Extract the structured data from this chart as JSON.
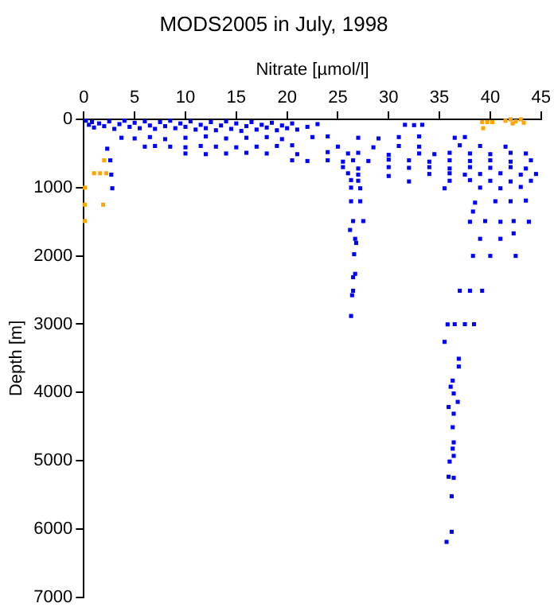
{
  "chart_data": {
    "type": "scatter",
    "title": "MODS2005 in July, 1998",
    "xlabel": "Nitrate [µmol/l]",
    "ylabel": "Depth [m]",
    "xlim": [
      0,
      45
    ],
    "xticks": [
      0,
      5,
      10,
      15,
      20,
      25,
      30,
      35,
      40,
      45
    ],
    "ylim": [
      7000,
      0
    ],
    "yticks": [
      0,
      1000,
      2000,
      3000,
      4000,
      5000,
      6000,
      7000
    ],
    "grid": false,
    "legend": false,
    "marker": "square",
    "series": [
      {
        "color": "#0000ff",
        "x": [
          0.2,
          0.5,
          0.8,
          1,
          1.5,
          2,
          2.5,
          3,
          3.5,
          4,
          4.5,
          5,
          5.5,
          6,
          6.5,
          7,
          7.5,
          8,
          8.5,
          9,
          9.5,
          10,
          10.5,
          11,
          11.5,
          12,
          12.5,
          13,
          13.5,
          14,
          14.5,
          15,
          15.5,
          16,
          16.5,
          17,
          17.5,
          18,
          18.5,
          19,
          19.5,
          20,
          20.5,
          21,
          22,
          23,
          31.6,
          32.5,
          33.3,
          3.7,
          5,
          6.5,
          8,
          10,
          12,
          14,
          16,
          18,
          19.5,
          22.5,
          24,
          27,
          29,
          31,
          33,
          36.5,
          37.5,
          6,
          7,
          8.5,
          10,
          11.5,
          13,
          15,
          17,
          19,
          20.5,
          25,
          28.5,
          31,
          33,
          37,
          39,
          41.5,
          10,
          12,
          14,
          16,
          18,
          21,
          24,
          26,
          27,
          30,
          33,
          34.5,
          36,
          38,
          40,
          42,
          43.5,
          20.5,
          22,
          24,
          25.5,
          26.5,
          28,
          30,
          32,
          34,
          36,
          38,
          40,
          42,
          44,
          2.3,
          2.6,
          2.7,
          2.8,
          25.5,
          27,
          30,
          32,
          34,
          36,
          38,
          40,
          42,
          43.5,
          26,
          27,
          30,
          34,
          36,
          37.5,
          39,
          41,
          43,
          44.5,
          26.3,
          27,
          32,
          36,
          38,
          40,
          42,
          44,
          26.3,
          27.2,
          35.5,
          39,
          41,
          43,
          26.3,
          27.2,
          38.5,
          40.5,
          42,
          43.5,
          26.5,
          27.5,
          38,
          39.5,
          41,
          42.3,
          43.8,
          38.3,
          26.2,
          26.7,
          26.8,
          26.6,
          26.7,
          26.5,
          26.5,
          26.4,
          26.3,
          39,
          41,
          42.3,
          38.3,
          40,
          42.5,
          37,
          38,
          39.2,
          35.8,
          36.5,
          37.5,
          38.4,
          35.5,
          36.9,
          36.9,
          36.3,
          36.1,
          36.4,
          36.8,
          35.9,
          36.4,
          36.3,
          36.4,
          36.3,
          36.4,
          36,
          35.9,
          36.4,
          36.2,
          36.2,
          35.7
        ],
        "values": [
          20,
          80,
          40,
          120,
          60,
          100,
          30,
          140,
          70,
          20,
          110,
          50,
          130,
          30,
          90,
          140,
          40,
          100,
          20,
          130,
          60,
          110,
          30,
          150,
          80,
          130,
          40,
          160,
          90,
          30,
          140,
          60,
          170,
          100,
          40,
          150,
          80,
          120,
          50,
          160,
          90,
          130,
          60,
          150,
          110,
          70,
          80,
          85,
          80,
          270,
          280,
          260,
          290,
          270,
          250,
          280,
          270,
          260,
          290,
          260,
          250,
          270,
          280,
          260,
          250,
          270,
          260,
          400,
          390,
          400,
          410,
          390,
          400,
          410,
          400,
          390,
          380,
          400,
          410,
          390,
          400,
          380,
          390,
          400,
          500,
          510,
          500,
          490,
          500,
          510,
          480,
          500,
          490,
          520,
          500,
          510,
          490,
          500,
          510,
          490,
          500,
          600,
          610,
          600,
          620,
          600,
          610,
          590,
          600,
          620,
          600,
          610,
          600,
          620,
          600,
          430,
          600,
          810,
          1010,
          700,
          720,
          700,
          710,
          700,
          720,
          700,
          710,
          700,
          720,
          790,
          810,
          830,
          800,
          790,
          810,
          800,
          790,
          810,
          800,
          890,
          900,
          910,
          900,
          890,
          900,
          910,
          900,
          1000,
          1010,
          1010,
          1000,
          1010,
          990,
          1200,
          1200,
          1220,
          1200,
          1200,
          1190,
          1490,
          1490,
          1500,
          1490,
          1500,
          1490,
          1500,
          1350,
          1620,
          1750,
          1810,
          1975,
          2263,
          2312,
          2510,
          2576,
          2880,
          1750,
          1750,
          1670,
          2000,
          2000,
          2000,
          2510,
          2510,
          2510,
          3003,
          3000,
          3000,
          3000,
          3259,
          3506,
          3620,
          3826,
          3916,
          4015,
          4138,
          4213,
          4311,
          4509,
          4731,
          4822,
          4929,
          5012,
          5234,
          5250,
          5520,
          6040,
          6188
        ]
      },
      {
        "color": "#ffa500",
        "x": [
          0.1,
          0.1,
          0.1,
          1,
          1.6,
          2.2,
          2,
          1.9,
          39.2,
          39.7,
          40.2,
          39.3,
          41.5,
          42,
          42.5,
          43,
          43.3,
          42.2
        ],
        "values": [
          1000,
          1250,
          1490,
          790,
          790,
          790,
          600,
          1250,
          40,
          40,
          40,
          130,
          20,
          0,
          30,
          0,
          50,
          60
        ]
      }
    ]
  }
}
